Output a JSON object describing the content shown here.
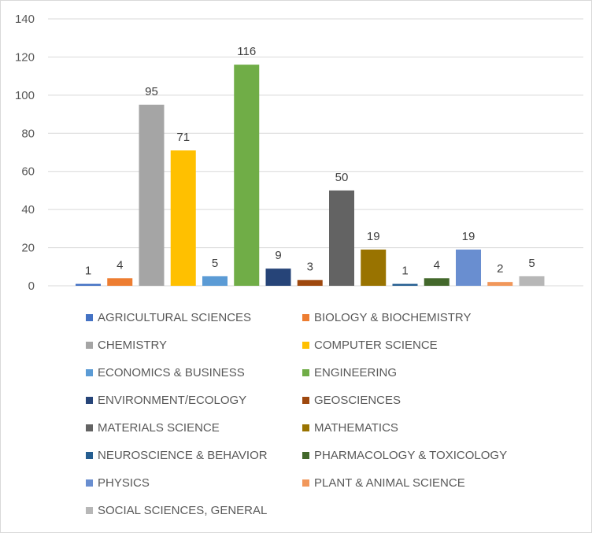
{
  "chart_data": {
    "type": "bar",
    "title": "",
    "xlabel": "",
    "ylabel": "",
    "ylim": [
      0,
      140
    ],
    "yticks": [
      0,
      20,
      40,
      60,
      80,
      100,
      120,
      140
    ],
    "grid": true,
    "legend_position": "bottom",
    "categories": [
      "AGRICULTURAL SCIENCES",
      "BIOLOGY & BIOCHEMISTRY",
      "CHEMISTRY",
      "COMPUTER SCIENCE",
      "ECONOMICS & BUSINESS",
      "ENGINEERING",
      "ENVIRONMENT/ECOLOGY",
      "GEOSCIENCES",
      "MATERIALS SCIENCE",
      "MATHEMATICS",
      "NEUROSCIENCE & BEHAVIOR",
      "PHARMACOLOGY & TOXICOLOGY",
      "PHYSICS",
      "PLANT & ANIMAL SCIENCE",
      "SOCIAL SCIENCES, GENERAL"
    ],
    "values": [
      1,
      4,
      95,
      71,
      5,
      116,
      9,
      3,
      50,
      19,
      1,
      4,
      19,
      2,
      5
    ],
    "colors": [
      "#4472C4",
      "#ED7D31",
      "#A5A5A5",
      "#FFC000",
      "#5B9BD5",
      "#70AD47",
      "#264478",
      "#9E480E",
      "#636363",
      "#997300",
      "#255E91",
      "#43682B",
      "#698ED0",
      "#F1975A",
      "#B7B7B7"
    ]
  }
}
